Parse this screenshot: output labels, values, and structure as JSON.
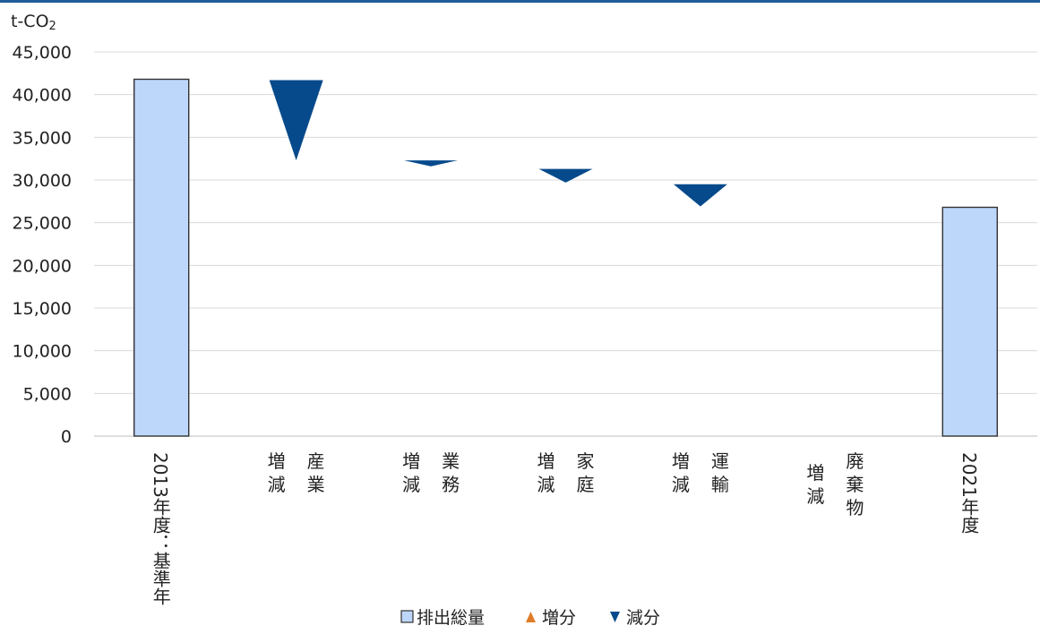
{
  "chart_data": {
    "type": "bar",
    "unit_label": "t-CO",
    "unit_subscript": "2",
    "ylim": [
      0,
      45000
    ],
    "y_ticks": [
      "0",
      "5,000",
      "10,000",
      "15,000",
      "20,000",
      "25,000",
      "30,000",
      "35,000",
      "40,000",
      "45,000"
    ],
    "grid": true,
    "categories": [
      {
        "text": "2013年度：基準年",
        "style": "vertical"
      },
      {
        "left": "増減",
        "right": "産業",
        "style": "pair"
      },
      {
        "left": "増減",
        "right": "業務",
        "style": "pair"
      },
      {
        "left": "増減",
        "right": "家庭",
        "style": "pair"
      },
      {
        "left": "増減",
        "right": "運輸",
        "style": "pair"
      },
      {
        "left": "増減",
        "right": "廃棄物",
        "style": "pair"
      },
      {
        "text": "2021年度",
        "style": "vertical"
      }
    ],
    "series": [
      {
        "name": "排出総量",
        "color": "#bdd7fb",
        "values": [
          41800,
          null,
          null,
          null,
          null,
          null,
          26800
        ]
      },
      {
        "name": "増分",
        "color": "#e07b27",
        "values": [
          null,
          null,
          null,
          null,
          null,
          null,
          null
        ]
      },
      {
        "name": "減分",
        "color": "#064a8c",
        "segments": [
          null,
          [
            41700,
            32300
          ],
          [
            32300,
            31600
          ],
          [
            31300,
            29700
          ],
          [
            29500,
            26900
          ],
          null,
          null
        ]
      }
    ],
    "legend_position": "bottom"
  }
}
